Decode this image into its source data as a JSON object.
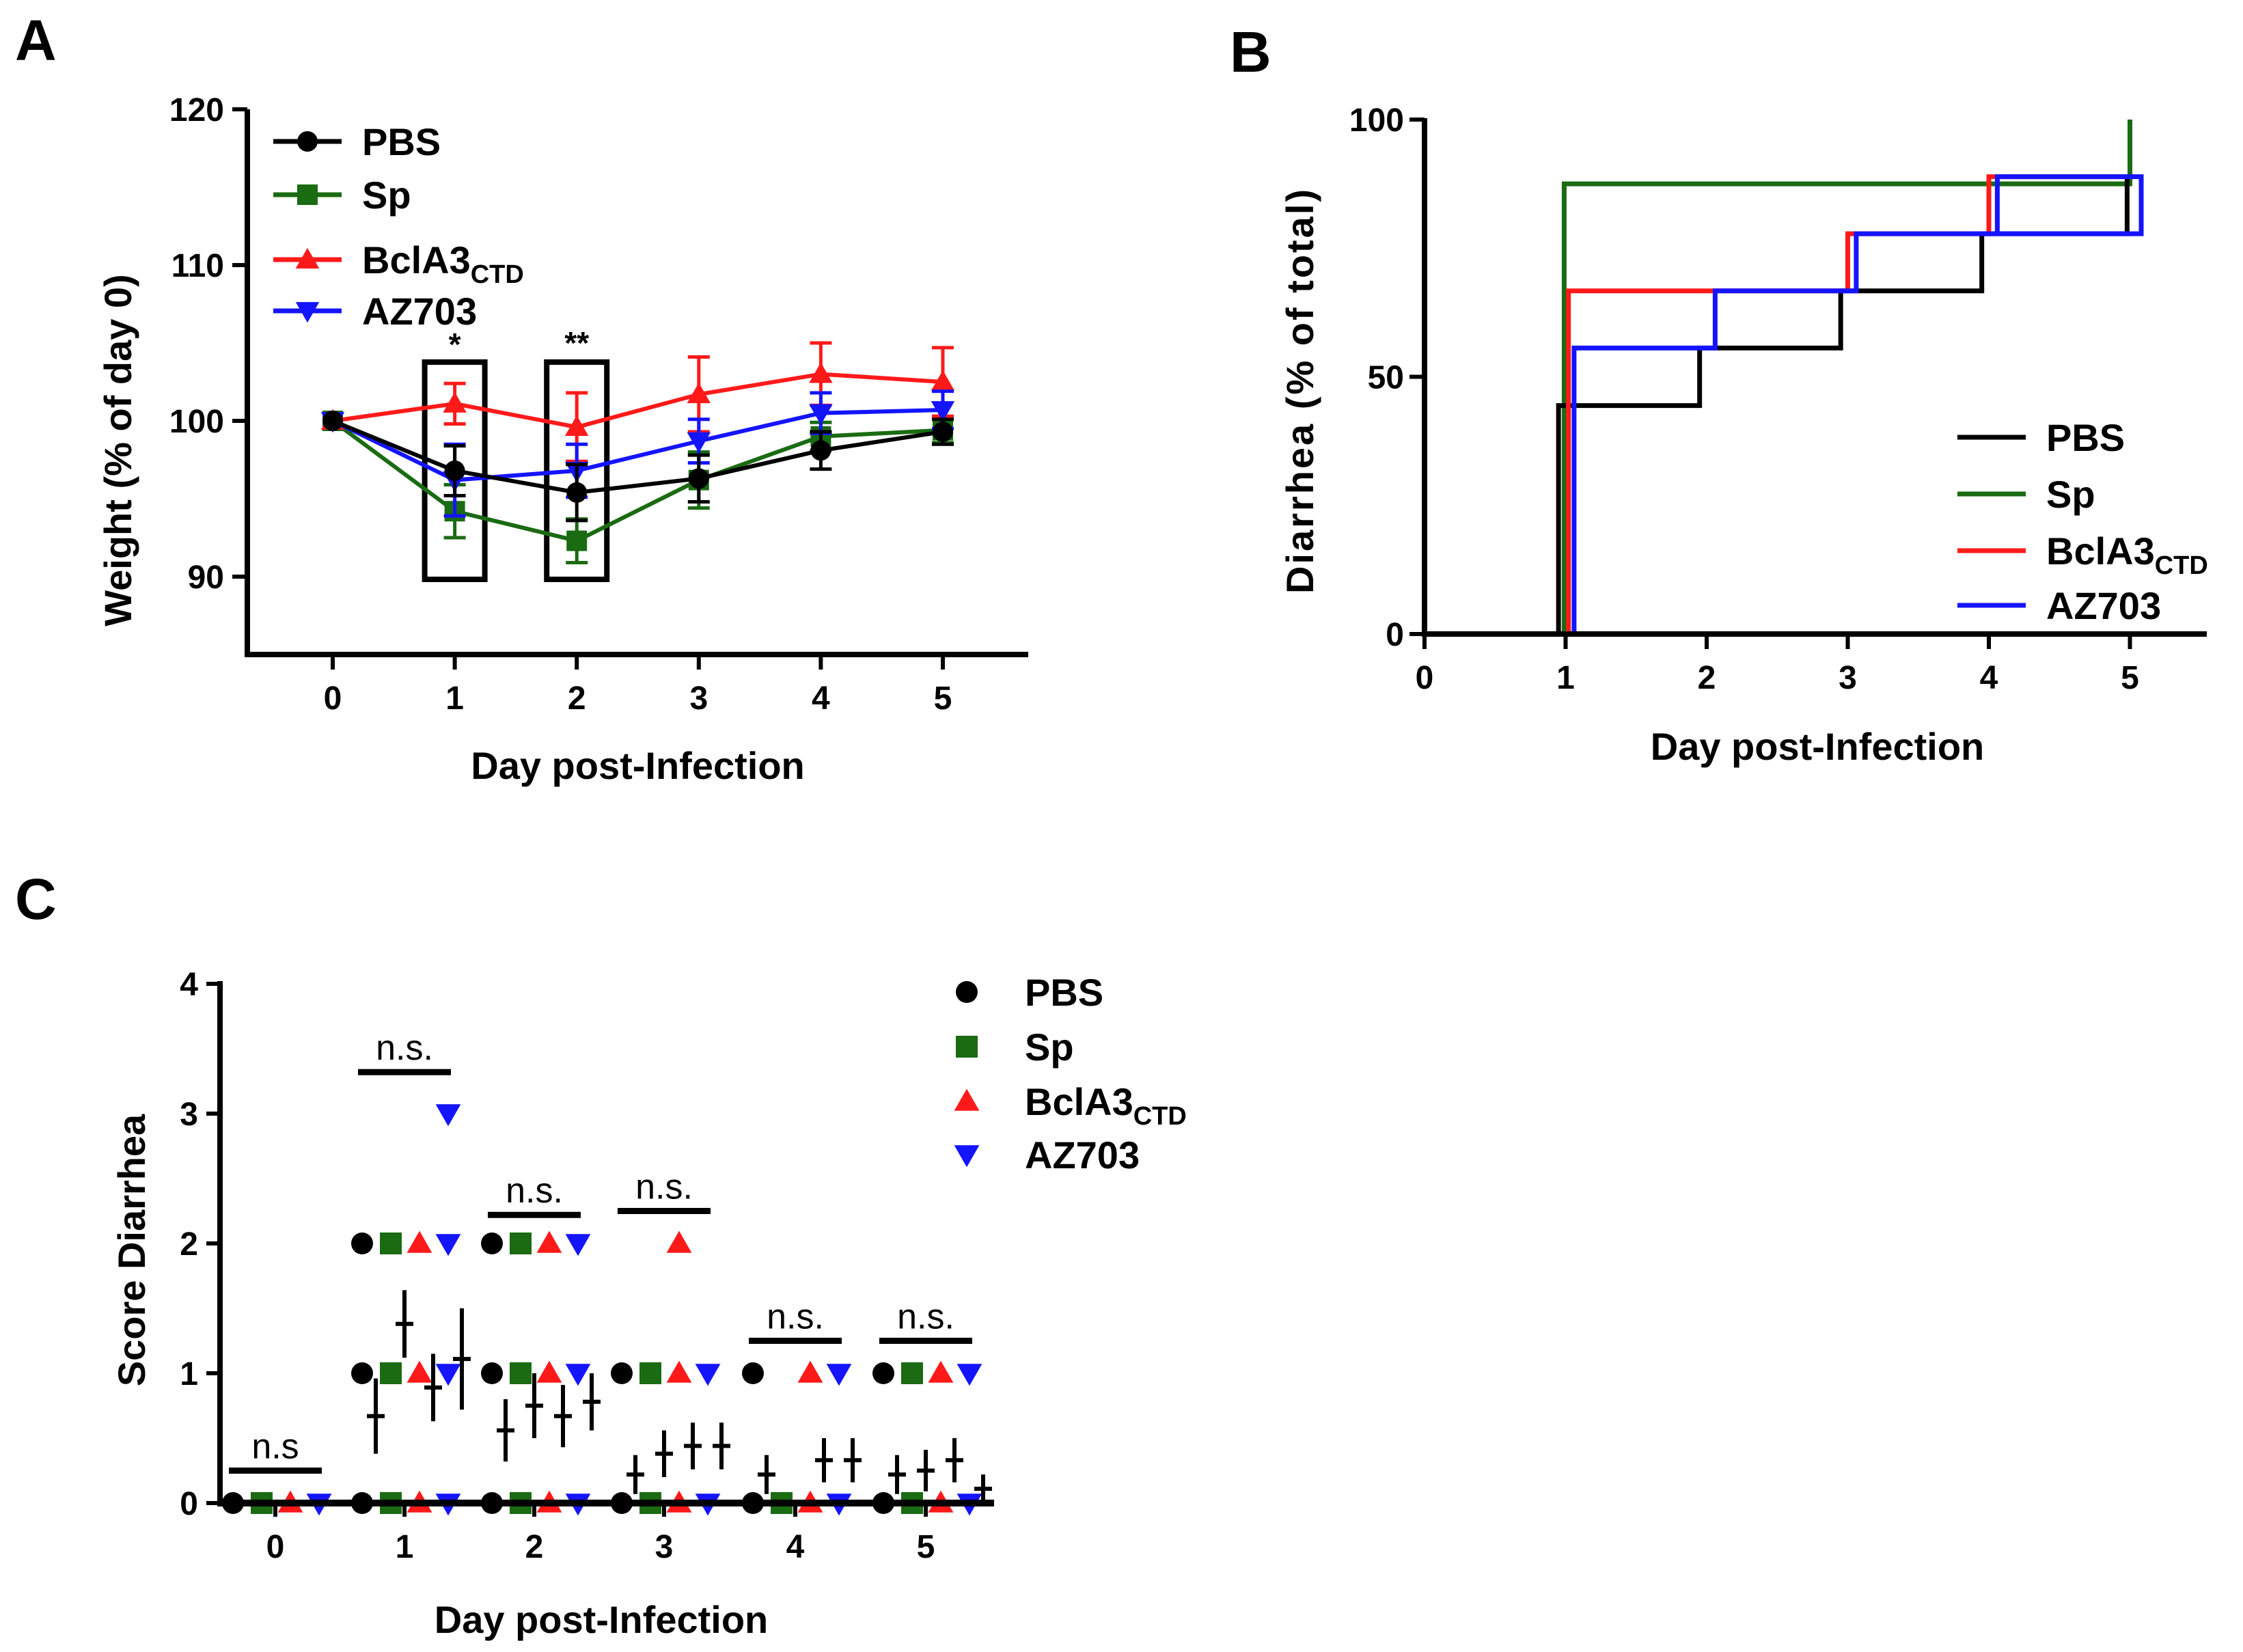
{
  "colors": {
    "PBS": "#000000",
    "Sp": "#1a6b12",
    "BclA3": "#ff1a1a",
    "AZ703": "#1414ff"
  },
  "panels": {
    "A": {
      "letter": "A"
    },
    "B": {
      "letter": "B"
    },
    "C": {
      "letter": "C"
    }
  },
  "legend": {
    "pbs": "PBS",
    "sp": "Sp",
    "bcla3_main": "BclA3",
    "bcla3_sub": "CTD",
    "az703": "AZ703"
  },
  "chart_data": [
    {
      "id": "A",
      "type": "line",
      "xlabel": "Day post-Infection",
      "ylabel": "Weight (% of day 0)",
      "xlim": [
        -0.7,
        5.7
      ],
      "ylim": [
        85,
        120
      ],
      "xticks": [
        "0",
        "1",
        "2",
        "3",
        "4",
        "5"
      ],
      "yticks": [
        "90",
        "100",
        "110",
        "120"
      ],
      "x": [
        0,
        1,
        2,
        3,
        4,
        5
      ],
      "series": [
        {
          "name": "PBS",
          "marker": "circle",
          "values": [
            100,
            96.8,
            95.4,
            96.3,
            98.1,
            99.3
          ],
          "err": [
            0,
            1.6,
            1.8,
            1.5,
            1.2,
            0.8
          ]
        },
        {
          "name": "Sp",
          "marker": "square",
          "values": [
            100,
            94.2,
            92.3,
            96.2,
            99.0,
            99.4
          ],
          "err": [
            0,
            1.7,
            1.4,
            1.8,
            0.9,
            0.8
          ]
        },
        {
          "name": "BclA3CTD",
          "marker": "triangle-up",
          "values": [
            100,
            101.1,
            99.6,
            101.7,
            103.0,
            102.5
          ],
          "err": [
            0,
            1.3,
            2.2,
            2.4,
            2.0,
            2.2
          ]
        },
        {
          "name": "AZ703",
          "marker": "triangle-down",
          "values": [
            100,
            96.2,
            96.8,
            98.7,
            100.5,
            100.7
          ],
          "err": [
            0,
            2.3,
            1.7,
            1.4,
            1.3,
            1.2
          ]
        }
      ],
      "annotations": [
        {
          "x": 1,
          "text": "*"
        },
        {
          "x": 2,
          "text": "**"
        }
      ]
    },
    {
      "id": "B",
      "type": "line",
      "subtype": "step",
      "xlabel": "Day post-Infection",
      "ylabel": "Diarrhea (% of total)",
      "xlim": [
        0,
        5.5
      ],
      "ylim": [
        0,
        100
      ],
      "xticks": [
        "0",
        "1",
        "2",
        "3",
        "4",
        "5"
      ],
      "yticks": [
        "0",
        "50",
        "100"
      ],
      "series": [
        {
          "name": "PBS",
          "steps": [
            [
              0.95,
              0
            ],
            [
              0.95,
              44.4
            ],
            [
              1.95,
              44.4
            ],
            [
              1.95,
              55.6
            ],
            [
              2.95,
              55.6
            ],
            [
              2.95,
              66.7
            ],
            [
              3.95,
              66.7
            ],
            [
              3.95,
              77.8
            ],
            [
              4.98,
              77.8
            ],
            [
              4.98,
              88.9
            ]
          ]
        },
        {
          "name": "Sp",
          "steps": [
            [
              0.99,
              0
            ],
            [
              0.99,
              87.5
            ],
            [
              5.0,
              87.5
            ],
            [
              5.0,
              100
            ]
          ]
        },
        {
          "name": "BclA3CTD",
          "steps": [
            [
              1.02,
              0
            ],
            [
              1.02,
              66.7
            ],
            [
              3.0,
              66.7
            ],
            [
              3.0,
              77.8
            ],
            [
              4.0,
              77.8
            ],
            [
              4.0,
              88.9
            ],
            [
              5.02,
              88.9
            ]
          ]
        },
        {
          "name": "AZ703",
          "steps": [
            [
              1.06,
              0
            ],
            [
              1.06,
              55.6
            ],
            [
              2.06,
              55.6
            ],
            [
              2.06,
              66.7
            ],
            [
              3.06,
              66.7
            ],
            [
              3.06,
              77.8
            ],
            [
              4.06,
              77.8
            ],
            [
              4.06,
              88.9
            ],
            [
              5.08,
              88.9
            ],
            [
              5.08,
              77.8
            ],
            [
              4.02,
              77.8
            ]
          ]
        }
      ]
    },
    {
      "id": "C",
      "type": "scatter",
      "xlabel": "Day post-Infection",
      "ylabel": "Score Diarrhea",
      "ylim": [
        0,
        4
      ],
      "xticks": [
        "0",
        "1",
        "2",
        "3",
        "4",
        "5"
      ],
      "yticks": [
        "0",
        "1",
        "2",
        "3",
        "4"
      ],
      "groups": [
        "PBS",
        "Sp",
        "BclA3CTD",
        "AZ703"
      ],
      "points": [
        {
          "day": 0,
          "group": "PBS",
          "y": [
            0
          ]
        },
        {
          "day": 0,
          "group": "Sp",
          "y": [
            0
          ]
        },
        {
          "day": 0,
          "group": "BclA3CTD",
          "y": [
            0
          ]
        },
        {
          "day": 0,
          "group": "AZ703",
          "y": [
            0
          ]
        },
        {
          "day": 1,
          "group": "PBS",
          "y": [
            0,
            1,
            2
          ]
        },
        {
          "day": 1,
          "group": "Sp",
          "y": [
            0,
            1,
            2
          ]
        },
        {
          "day": 1,
          "group": "BclA3CTD",
          "y": [
            0,
            1,
            2
          ]
        },
        {
          "day": 1,
          "group": "AZ703",
          "y": [
            0,
            1,
            2,
            3
          ]
        },
        {
          "day": 2,
          "group": "PBS",
          "y": [
            0,
            1,
            2
          ]
        },
        {
          "day": 2,
          "group": "Sp",
          "y": [
            0,
            1,
            2
          ]
        },
        {
          "day": 2,
          "group": "BclA3CTD",
          "y": [
            0,
            1,
            2
          ]
        },
        {
          "day": 2,
          "group": "AZ703",
          "y": [
            0,
            1,
            2
          ]
        },
        {
          "day": 3,
          "group": "PBS",
          "y": [
            0,
            1
          ]
        },
        {
          "day": 3,
          "group": "Sp",
          "y": [
            0,
            1
          ]
        },
        {
          "day": 3,
          "group": "BclA3CTD",
          "y": [
            0,
            1,
            2
          ]
        },
        {
          "day": 3,
          "group": "AZ703",
          "y": [
            0,
            1
          ]
        },
        {
          "day": 4,
          "group": "PBS",
          "y": [
            0,
            1
          ]
        },
        {
          "day": 4,
          "group": "Sp",
          "y": [
            0
          ]
        },
        {
          "day": 4,
          "group": "BclA3CTD",
          "y": [
            0,
            1
          ]
        },
        {
          "day": 4,
          "group": "AZ703",
          "y": [
            0,
            1
          ]
        },
        {
          "day": 5,
          "group": "PBS",
          "y": [
            0,
            1
          ]
        },
        {
          "day": 5,
          "group": "Sp",
          "y": [
            0,
            1
          ]
        },
        {
          "day": 5,
          "group": "BclA3CTD",
          "y": [
            0,
            1
          ]
        },
        {
          "day": 5,
          "group": "AZ703",
          "y": [
            0,
            1
          ]
        }
      ],
      "means": [
        {
          "day": 0,
          "values": [
            0,
            0,
            0,
            0
          ],
          "sem": [
            0,
            0,
            0,
            0
          ]
        },
        {
          "day": 1,
          "values": [
            0.67,
            1.38,
            0.89,
            1.11
          ],
          "sem": [
            0.29,
            0.26,
            0.26,
            0.39
          ]
        },
        {
          "day": 2,
          "values": [
            0.56,
            0.75,
            0.67,
            0.78
          ],
          "sem": [
            0.24,
            0.25,
            0.24,
            0.22
          ]
        },
        {
          "day": 3,
          "values": [
            0.22,
            0.38,
            0.44,
            0.44
          ],
          "sem": [
            0.15,
            0.18,
            0.18,
            0.18
          ]
        },
        {
          "day": 4,
          "values": [
            0.22,
            0,
            0.33,
            0.33
          ],
          "sem": [
            0.15,
            0,
            0.17,
            0.17
          ]
        },
        {
          "day": 5,
          "values": [
            0.22,
            0.25,
            0.33,
            0.11
          ],
          "sem": [
            0.15,
            0.16,
            0.17,
            0.11
          ]
        }
      ],
      "annotations": [
        {
          "day": 0,
          "text": "n.s",
          "y": 0.25
        },
        {
          "day": 1,
          "text": "n.s.",
          "y": 3.32
        },
        {
          "day": 2,
          "text": "n.s.",
          "y": 2.22
        },
        {
          "day": 3,
          "text": "n.s.",
          "y": 2.25
        },
        {
          "day": 4,
          "text": "n.s.",
          "y": 1.25
        },
        {
          "day": 5,
          "text": "n.s.",
          "y": 1.25
        }
      ]
    }
  ]
}
